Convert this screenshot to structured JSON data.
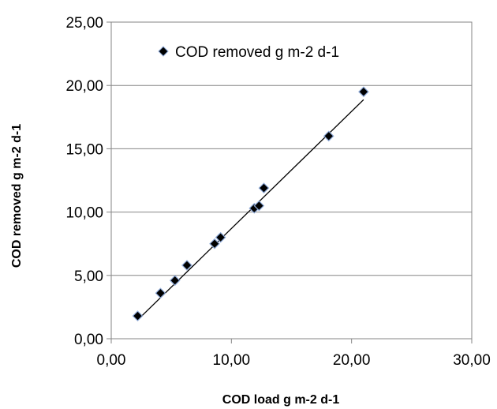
{
  "chart_data": {
    "type": "scatter",
    "title": "",
    "xlabel": "COD load g m-2 d-1",
    "ylabel": "COD removed g m-2 d-1",
    "xlim": [
      0,
      30
    ],
    "ylim": [
      0,
      25
    ],
    "x_ticks": [
      0,
      10,
      20,
      30
    ],
    "y_ticks": [
      0,
      5,
      10,
      15,
      20,
      25
    ],
    "x_tick_labels": [
      "0,00",
      "10,00",
      "20,00",
      "30,00"
    ],
    "y_tick_labels": [
      "0,00",
      "5,00",
      "10,00",
      "15,00",
      "20,00",
      "25,00"
    ],
    "grid": "horizontal",
    "legend_position": "top-left",
    "series": [
      {
        "name": "COD removed g m-2 d-1",
        "marker": "diamond",
        "color": "#000000",
        "marker_edge_color": "#8eaad8",
        "points": [
          {
            "x": 2.2,
            "y": 1.8
          },
          {
            "x": 4.1,
            "y": 3.6
          },
          {
            "x": 5.3,
            "y": 4.6
          },
          {
            "x": 6.3,
            "y": 5.8
          },
          {
            "x": 8.6,
            "y": 7.5
          },
          {
            "x": 9.1,
            "y": 8.0
          },
          {
            "x": 11.9,
            "y": 10.3
          },
          {
            "x": 12.3,
            "y": 10.5
          },
          {
            "x": 12.7,
            "y": 11.9
          },
          {
            "x": 18.1,
            "y": 16.0
          },
          {
            "x": 21.0,
            "y": 19.5
          }
        ]
      }
    ],
    "trendline": {
      "type": "linear",
      "color": "#000000",
      "x_range": [
        2.2,
        21.0
      ],
      "slope": 0.925,
      "intercept": -0.55
    }
  }
}
